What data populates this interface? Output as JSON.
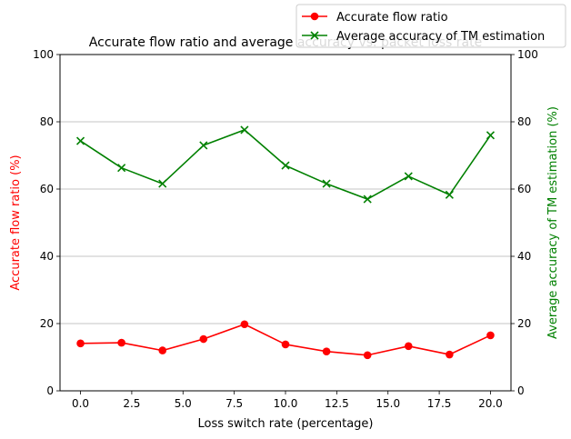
{
  "chart_data": {
    "type": "line",
    "title": "Accurate flow ratio and average accuracy vs. packet loss rate",
    "xlabel": "Loss switch rate (percentage)",
    "ylabel_left": "Accurate flow ratio (%)",
    "ylabel_right": "Average accuracy of TM estimation (%)",
    "xlim": [
      -1,
      21
    ],
    "ylim_left": [
      0,
      100
    ],
    "ylim_right": [
      0,
      100
    ],
    "x_ticks": [
      0.0,
      2.5,
      5.0,
      7.5,
      10.0,
      12.5,
      15.0,
      17.5,
      20.0
    ],
    "x_tick_labels": [
      "0.0",
      "2.5",
      "5.0",
      "7.5",
      "10.0",
      "12.5",
      "15.0",
      "17.5",
      "20.0"
    ],
    "y_ticks": [
      0,
      20,
      40,
      60,
      80,
      100
    ],
    "y_tick_labels": [
      "0",
      "20",
      "40",
      "60",
      "80",
      "100"
    ],
    "grid": "horizontal, right axis",
    "legend_position": "top-right",
    "x": [
      0,
      2,
      4,
      6,
      8,
      10,
      12,
      14,
      16,
      18,
      20
    ],
    "series": [
      {
        "name": "Accurate flow ratio",
        "axis": "left",
        "color": "#ff0000",
        "marker": "circle",
        "values": [
          14.1,
          14.3,
          12.0,
          15.4,
          19.8,
          13.8,
          11.7,
          10.6,
          13.3,
          10.8,
          16.5
        ]
      },
      {
        "name": "Average accuracy of TM estimation",
        "axis": "right",
        "color": "#008000",
        "marker": "x",
        "values": [
          74.3,
          66.3,
          61.6,
          73.0,
          77.6,
          67.0,
          61.6,
          57.0,
          63.8,
          58.3,
          76.0
        ]
      }
    ]
  }
}
